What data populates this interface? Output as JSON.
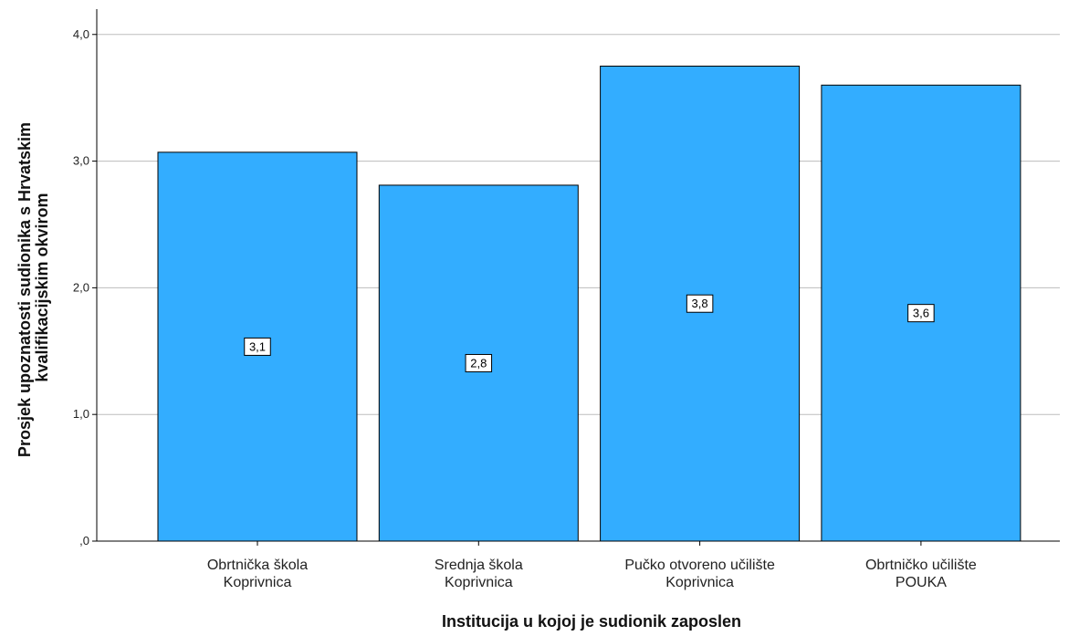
{
  "chart_data": {
    "type": "bar",
    "categories": [
      [
        "Obrtnička škola",
        "Koprivnica"
      ],
      [
        "Srednja škola",
        "Koprivnica"
      ],
      [
        "Pučko otvoreno učilište",
        "Koprivnica"
      ],
      [
        "Obrtničko učilište",
        "POUKA"
      ]
    ],
    "values": [
      3.07,
      2.81,
      3.75,
      3.6
    ],
    "data_labels": [
      "3,1",
      "2,8",
      "3,8",
      "3,6"
    ],
    "yticks": [
      0,
      1,
      2,
      3,
      4
    ],
    "ytick_labels": [
      ",0",
      "1,0",
      "2,0",
      "3,0",
      "4,0"
    ],
    "ylim": [
      0,
      4.2
    ],
    "xlabel": "Institucija u kojoj je sudionik zaposlen",
    "ylabel": [
      "Prosjek upoznatosti sudionika s Hrvatskim",
      "kvalifikacijskim okvirom"
    ],
    "grid": true,
    "bar_color": "#33adff"
  }
}
